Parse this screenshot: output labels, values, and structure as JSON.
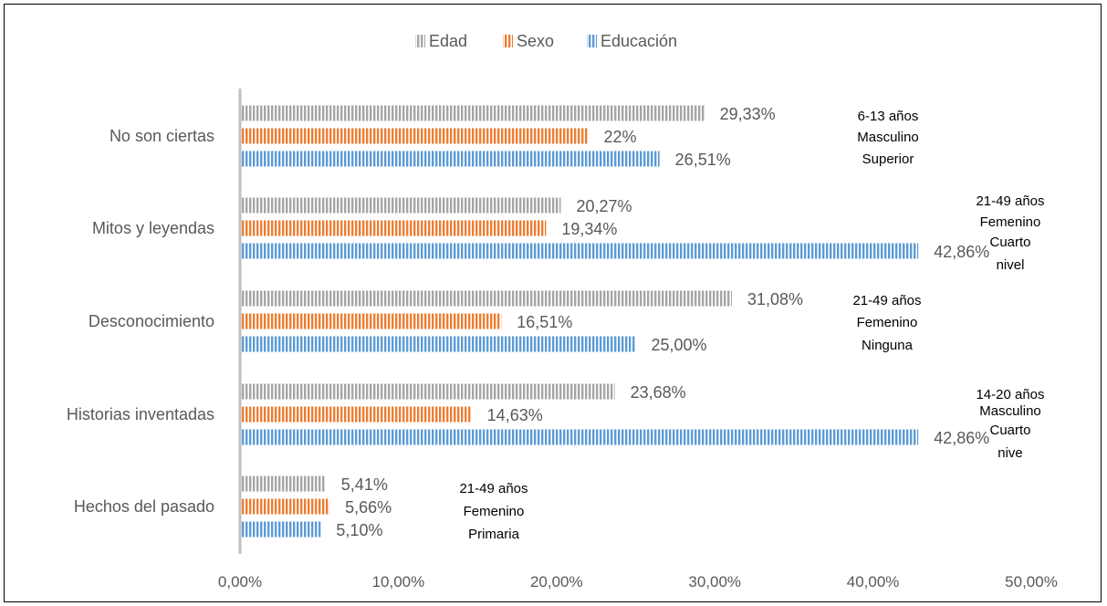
{
  "chart_data": {
    "type": "bar",
    "orientation": "horizontal",
    "categories": [
      "No son ciertas",
      "Mitos y leyendas",
      "Desconocimiento",
      "Historias inventadas",
      "Hechos del pasado"
    ],
    "series": [
      {
        "name": "Edad",
        "color": "#a5a5a5",
        "values": [
          29.33,
          20.27,
          31.08,
          23.68,
          5.41
        ],
        "labels": [
          "29,33%",
          "20,27%",
          "31,08%",
          "23,68%",
          "5,41%"
        ]
      },
      {
        "name": "Sexo",
        "color": "#ed7d31",
        "values": [
          22,
          19.34,
          16.51,
          14.63,
          5.66
        ],
        "labels": [
          "22%",
          "19,34%",
          "16,51%",
          "14,63%",
          "5,66%"
        ]
      },
      {
        "name": "Educación",
        "color": "#5b9bd5",
        "values": [
          26.51,
          42.86,
          25.0,
          42.86,
          5.1
        ],
        "labels": [
          "26,51%",
          "42,86%",
          "25,00%",
          "42,86%",
          "5,10%"
        ]
      }
    ],
    "xlim": [
      0,
      50
    ],
    "xticks": [
      0,
      10,
      20,
      30,
      40,
      50
    ],
    "xtick_labels": [
      "0,00%",
      "10,00%",
      "20,00%",
      "30,00%",
      "40,00%",
      "50,00%"
    ],
    "grid": false,
    "legend_position": "top",
    "annotations": [
      [
        "6-13 años",
        "Masculino",
        "Superior"
      ],
      [
        "21-49 años",
        "Femenino",
        "Cuarto",
        "nivel"
      ],
      [
        "21-49 años",
        "Femenino",
        "Ninguna"
      ],
      [
        "14-20 años",
        "Masculino",
        "Cuarto",
        "nive"
      ],
      [
        "21-49 años",
        "Femenino",
        "Primaria"
      ]
    ],
    "title": "",
    "xlabel": "",
    "ylabel": ""
  }
}
